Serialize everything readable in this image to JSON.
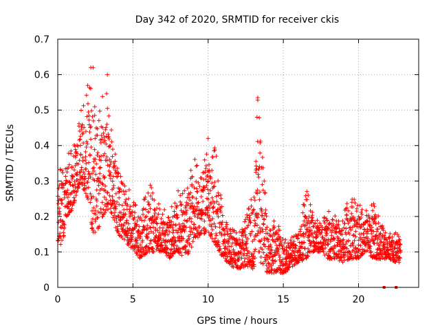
{
  "chart_data": {
    "type": "scatter",
    "title": "Day 342 of 2020, SRMTID for receiver ckis",
    "xlabel": "GPS time / hours",
    "ylabel": "SRMTID / TECUs",
    "xlim": [
      0,
      24
    ],
    "ylim": [
      0,
      0.7
    ],
    "xticks": [
      0,
      5,
      10,
      15,
      20
    ],
    "yticks": [
      0,
      0.1,
      0.2,
      0.3,
      0.4,
      0.5,
      0.6,
      0.7
    ],
    "xtick_labels": [
      "0",
      "5",
      "10",
      "15",
      "20"
    ],
    "ytick_labels": [
      "0",
      "0.1",
      "0.2",
      "0.3",
      "0.4",
      "0.5",
      "0.6",
      "0.7"
    ],
    "grid": true,
    "legend": "none",
    "marker": "plus",
    "color": "#ff0000",
    "envelope": {
      "description_of_series": "dense point cloud of SRMTID values; approximate per-time ranges (data units)",
      "x": [
        0.0,
        0.3,
        0.6,
        1.0,
        1.5,
        2.0,
        2.3,
        2.6,
        3.0,
        3.3,
        3.6,
        4.0,
        4.5,
        5.0,
        5.5,
        6.0,
        6.5,
        7.0,
        7.5,
        8.0,
        8.5,
        9.0,
        9.5,
        10.0,
        10.5,
        11.0,
        11.5,
        12.0,
        12.5,
        13.0,
        13.3,
        13.6,
        14.0,
        14.5,
        15.0,
        15.5,
        16.0,
        16.5,
        17.0,
        17.5,
        18.0,
        18.5,
        19.0,
        19.5,
        20.0,
        20.5,
        21.0,
        21.5,
        22.0,
        22.5,
        22.8
      ],
      "low": [
        0.12,
        0.12,
        0.2,
        0.22,
        0.3,
        0.25,
        0.15,
        0.15,
        0.2,
        0.22,
        0.2,
        0.15,
        0.13,
        0.1,
        0.08,
        0.1,
        0.1,
        0.1,
        0.08,
        0.1,
        0.08,
        0.12,
        0.15,
        0.15,
        0.12,
        0.08,
        0.06,
        0.05,
        0.06,
        0.05,
        0.1,
        0.05,
        0.04,
        0.04,
        0.04,
        0.05,
        0.07,
        0.08,
        0.1,
        0.1,
        0.08,
        0.08,
        0.07,
        0.08,
        0.08,
        0.1,
        0.08,
        0.08,
        0.08,
        0.07,
        0.07
      ],
      "high": [
        0.32,
        0.35,
        0.38,
        0.4,
        0.5,
        0.6,
        0.62,
        0.45,
        0.55,
        0.6,
        0.45,
        0.35,
        0.3,
        0.25,
        0.2,
        0.3,
        0.28,
        0.22,
        0.22,
        0.3,
        0.28,
        0.38,
        0.32,
        0.42,
        0.4,
        0.2,
        0.18,
        0.16,
        0.2,
        0.28,
        0.54,
        0.4,
        0.18,
        0.2,
        0.16,
        0.14,
        0.18,
        0.28,
        0.22,
        0.18,
        0.22,
        0.2,
        0.22,
        0.26,
        0.24,
        0.22,
        0.24,
        0.18,
        0.15,
        0.16,
        0.14
      ]
    },
    "highlights": [
      {
        "x": 2.2,
        "y": 0.62
      },
      {
        "x": 2.35,
        "y": 0.62
      },
      {
        "x": 3.3,
        "y": 0.6
      },
      {
        "x": 13.3,
        "y": 0.535
      },
      {
        "x": 13.25,
        "y": 0.48
      },
      {
        "x": 10.0,
        "y": 0.42
      }
    ],
    "zero_markers": [
      {
        "x": 21.7,
        "y": 0
      },
      {
        "x": 22.5,
        "y": 0
      }
    ]
  }
}
